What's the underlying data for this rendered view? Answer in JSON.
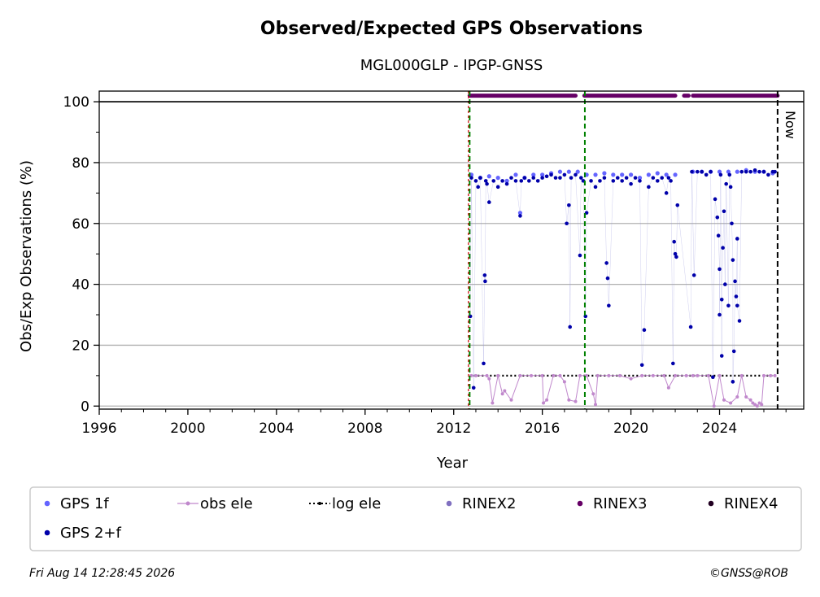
{
  "chart_data": {
    "type": "scatter",
    "title": "Observed/Expected GPS Observations",
    "subtitle": "MGL000GLP - IPGP-GNSS",
    "xlabel": "Year",
    "ylabel": "Obs/Exp Observations (%)",
    "xlim": [
      1996,
      2027.8
    ],
    "ylim": [
      -1,
      103.5
    ],
    "xticks": [
      1996,
      2000,
      2004,
      2008,
      2012,
      2016,
      2020,
      2024
    ],
    "yticks": [
      0,
      20,
      40,
      60,
      80,
      100
    ],
    "grid": "horizontal",
    "now_label": "Now",
    "now_x": 2026.62,
    "equipment_changes": [
      2012.72,
      2017.92
    ],
    "series": [
      {
        "name": "GPS 1f",
        "color": "#6464ff",
        "x": [
          2012.8,
          2013.2,
          2013.6,
          2014.0,
          2014.4,
          2014.8,
          2015.2,
          2015.6,
          2016.0,
          2016.4,
          2016.8,
          2017.2,
          2017.6,
          2018.0,
          2018.4,
          2018.8,
          2019.2,
          2019.6,
          2020.0,
          2020.4,
          2020.8,
          2021.2,
          2021.6,
          2022.0,
          2022.8,
          2023.2,
          2023.6,
          2024.0,
          2024.4,
          2024.8,
          2025.2,
          2025.6,
          2026.0,
          2026.4,
          2015.0
        ],
        "y": [
          76,
          75,
          75.5,
          75,
          74,
          76,
          75,
          76,
          76,
          76.5,
          77,
          77,
          77,
          76,
          76,
          76.5,
          76,
          76,
          76,
          75,
          76,
          76.5,
          76,
          76,
          77,
          77,
          77,
          77,
          77,
          77,
          77.5,
          77,
          77,
          76.5,
          63.5
        ]
      },
      {
        "name": "GPS 2+f",
        "color": "#0000aa",
        "x": [
          2012.75,
          2012.8,
          2012.9,
          2013.0,
          2013.1,
          2013.2,
          2013.35,
          2013.4,
          2013.42,
          2013.45,
          2013.5,
          2013.6,
          2013.8,
          2014.0,
          2014.2,
          2014.4,
          2014.6,
          2014.8,
          2015.0,
          2015.05,
          2015.2,
          2015.4,
          2015.6,
          2015.8,
          2016.0,
          2016.2,
          2016.4,
          2016.6,
          2016.8,
          2017.0,
          2017.1,
          2017.2,
          2017.25,
          2017.3,
          2017.5,
          2017.7,
          2017.75,
          2017.85,
          2017.95,
          2018.0,
          2018.2,
          2018.4,
          2018.6,
          2018.8,
          2018.9,
          2018.95,
          2019.0,
          2019.2,
          2019.4,
          2019.6,
          2019.8,
          2020.0,
          2020.2,
          2020.4,
          2020.5,
          2020.6,
          2020.8,
          2021.0,
          2021.2,
          2021.4,
          2021.6,
          2021.7,
          2021.8,
          2021.9,
          2021.95,
          2022.0,
          2022.05,
          2022.1,
          2022.7,
          2022.75,
          2022.85,
          2023.0,
          2023.2,
          2023.4,
          2023.6,
          2023.7,
          2023.8,
          2023.9,
          2023.95,
          2024.0,
          2024.0,
          2024.05,
          2024.1,
          2024.1,
          2024.15,
          2024.2,
          2024.25,
          2024.3,
          2024.4,
          2024.45,
          2024.5,
          2024.55,
          2024.6,
          2024.6,
          2024.65,
          2024.7,
          2024.75,
          2024.8,
          2024.8,
          2024.9,
          2025.0,
          2025.2,
          2025.4,
          2025.6,
          2025.8,
          2026.0,
          2026.2,
          2026.4,
          2026.5
        ],
        "y": [
          29.5,
          75,
          6,
          74,
          72,
          75,
          14,
          43,
          41,
          74,
          73,
          67,
          74,
          72,
          74,
          73,
          75,
          74,
          62.5,
          74,
          75,
          74,
          75,
          74,
          75,
          75.5,
          76,
          75,
          75,
          76,
          60,
          66,
          26,
          75,
          76,
          49.5,
          75,
          74,
          29.5,
          63.5,
          74,
          72,
          74,
          75,
          47,
          42,
          33,
          74,
          75,
          74,
          75,
          73,
          75,
          74,
          13.5,
          25,
          72,
          75,
          74,
          75,
          70,
          75,
          74,
          14,
          54,
          50,
          49,
          66,
          26,
          77,
          43,
          77,
          77,
          76,
          77,
          9.5,
          68,
          62,
          56,
          45,
          30,
          76,
          16.5,
          35,
          52,
          64,
          40,
          73,
          33,
          76,
          72,
          60,
          48,
          8,
          18,
          41,
          36,
          55,
          33,
          28,
          77,
          77,
          77,
          77.5,
          77,
          77,
          76,
          77,
          77
        ]
      },
      {
        "name": "obs ele",
        "color": "#c088cc",
        "x": [
          2012.8,
          2013.0,
          2013.5,
          2013.6,
          2013.75,
          2014.0,
          2014.2,
          2014.3,
          2014.6,
          2015.0,
          2015.5,
          2016.0,
          2016.05,
          2016.2,
          2016.5,
          2016.8,
          2017.0,
          2017.2,
          2017.5,
          2017.7,
          2018.0,
          2018.3,
          2018.4,
          2018.5,
          2019.0,
          2019.5,
          2020.0,
          2020.5,
          2021.0,
          2021.5,
          2021.7,
          2022.0,
          2022.5,
          2022.8,
          2023.0,
          2023.5,
          2023.75,
          2024.0,
          2024.2,
          2024.5,
          2024.8,
          2025.0,
          2025.2,
          2025.4,
          2025.5,
          2025.6,
          2025.7,
          2025.8,
          2025.9,
          2026.0,
          2026.3,
          2026.5
        ],
        "y": [
          10,
          10,
          10,
          9,
          1,
          10,
          4,
          5,
          2,
          10,
          10,
          10,
          1,
          2,
          10,
          10,
          8,
          2,
          1.5,
          10,
          10,
          4,
          0.5,
          10,
          10,
          10,
          9,
          10,
          10,
          10,
          6,
          10,
          10,
          10,
          10,
          10,
          0,
          10,
          2,
          1,
          3,
          10,
          3,
          2,
          1,
          0.5,
          0,
          1,
          0.5,
          10,
          10,
          10
        ]
      },
      {
        "name": "log ele",
        "color": "#000000",
        "x": [
          2012.72,
          2026.62
        ],
        "y": [
          10,
          10
        ]
      },
      {
        "name": "RINEX2",
        "color": "#8070c0",
        "segments": []
      },
      {
        "name": "RINEX3",
        "color": "#660066",
        "y": 102,
        "segments": [
          [
            2012.72,
            2017.5
          ],
          [
            2017.9,
            2022.0
          ],
          [
            2022.4,
            2022.6
          ],
          [
            2022.8,
            2026.62
          ]
        ]
      },
      {
        "name": "RINEX4",
        "color": "#220022",
        "segments": []
      }
    ]
  },
  "legend": {
    "items": [
      {
        "label": "GPS 1f",
        "color": "#6464ff",
        "marker": "dot"
      },
      {
        "label": "obs ele",
        "color": "#c088cc",
        "marker": "line-dot"
      },
      {
        "label": "log ele",
        "color": "#000000",
        "marker": "dotted-line"
      },
      {
        "label": "RINEX2",
        "color": "#8070c0",
        "marker": "dot"
      },
      {
        "label": "RINEX3",
        "color": "#660066",
        "marker": "dot"
      },
      {
        "label": "RINEX4",
        "color": "#220022",
        "marker": "dot"
      },
      {
        "label": "GPS 2+f",
        "color": "#0000aa",
        "marker": "dot"
      }
    ]
  },
  "footer": {
    "timestamp": "Fri Aug 14 12:28:45 2026",
    "credit": "©GNSS@ROB"
  }
}
